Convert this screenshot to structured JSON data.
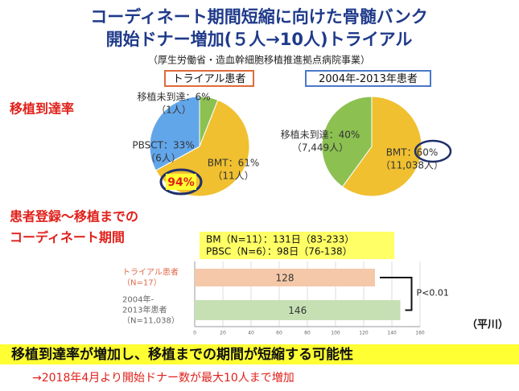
{
  "title_lines": [
    "コーディネート期間短縮に向けた骨髄バンク",
    "開始ドナー増加(５人→10人)トライアル"
  ],
  "subtitle": "（厚生労働省・造血幹細胞移植推進拠点病院事業）",
  "section1": "移植到達率",
  "section2_lines": [
    "患者登録～移植までの",
    "コーディネート期間"
  ],
  "summary_lines": [
    "BM（N=11）：131日（83-233）",
    "PBSC（N=6）：98日（76-138）"
  ],
  "author": "（平川）",
  "conclusion": "移植到達率が増加し、移植までの期間が短縮する可能性",
  "note": "→2018年4月より開始ドナー数が最大10人まで増加",
  "chart_data": [
    {
      "type": "pie",
      "title": "トライアル患者",
      "values": [
        6,
        61,
        33
      ],
      "value_labels": [
        "移植未到達：6%",
        "BMT：61%",
        "PBSCT：33%"
      ],
      "sublabels": [
        "（1人）",
        "（11人）",
        "（6人）"
      ],
      "colors": [
        "#8cc152",
        "#f0c030",
        "#62a6ea"
      ],
      "highlight": "94%"
    },
    {
      "type": "pie",
      "title": "2004年-2013年患者",
      "values": [
        60,
        40
      ],
      "value_labels": [
        "BMT：60%",
        "移植未到達：40%"
      ],
      "sublabels": [
        "（11,038人）",
        "（7,449人）"
      ],
      "colors": [
        "#f0c030",
        "#8cc152"
      ]
    },
    {
      "type": "barh",
      "categories": [
        [
          "トライアル患者",
          "（N=17）"
        ],
        [
          "2004年-",
          "2013年患者",
          "（N=11,038）"
        ]
      ],
      "values": [
        128,
        146
      ],
      "colors": [
        "#f4c8a8",
        "#c6e0b4"
      ],
      "xlim": [
        0,
        160
      ],
      "xticks": [
        0,
        20,
        40,
        60,
        80,
        100,
        120,
        140,
        160
      ],
      "grid": true,
      "annotation": "P<0.01"
    }
  ]
}
